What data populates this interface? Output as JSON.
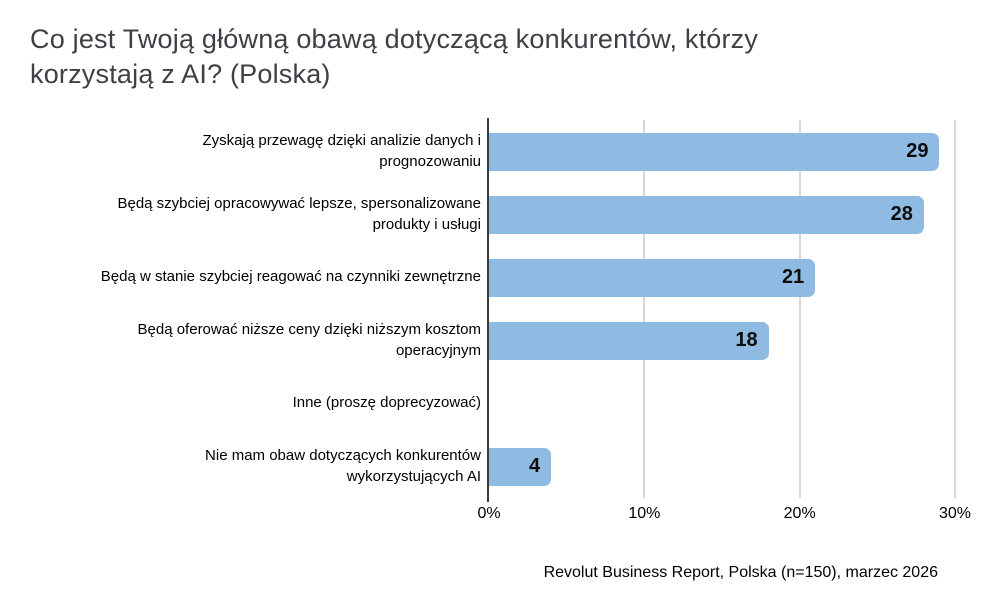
{
  "colors": {
    "bar": "#8FBAE1",
    "gridline": "#D8D8D8",
    "axis": "#3A3A3A",
    "title": "#3D4045",
    "text": "#000000"
  },
  "chart_data": {
    "type": "bar",
    "orientation": "horizontal",
    "title": "Co jest Twoją główną obawą dotyczącą konkurentów, którzy korzystają z AI? (Polska)",
    "categories": [
      "Zyskają przewagę dzięki analizie danych i\nprognozowaniu",
      "Będą szybciej opracowywać lepsze, spersonalizowane\nprodukty i usługi",
      "Będą w stanie szybciej reagować na czynniki zewnętrzne",
      "Będą oferować niższe ceny dzięki niższym kosztom\noperacyjnym",
      "Inne (proszę doprecyzować)",
      "Nie mam obaw dotyczących konkurentów\nwykorzystujących AI"
    ],
    "values": [
      29,
      28,
      21,
      18,
      0,
      4
    ],
    "value_suffix": "%",
    "xlim": [
      0,
      30
    ],
    "ticks": [
      0,
      10,
      20,
      30
    ],
    "tick_labels": [
      "0%",
      "10%",
      "20%",
      "30%"
    ],
    "grid": true,
    "legend": "none",
    "source": "Revolut Business Report, Polska (n=150), marzec 2026"
  }
}
